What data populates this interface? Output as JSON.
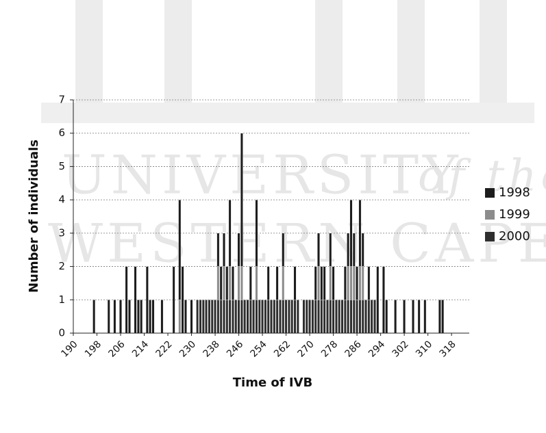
{
  "watermark": {
    "line1": "UNIVERSITY",
    "line1b": "of the",
    "line2": "WESTERN CAPE"
  },
  "chart_data": {
    "type": "bar",
    "stacked": true,
    "x_label": "Time of IVB",
    "y_label": "Number of individuals",
    "x": [
      197,
      202,
      204,
      206,
      208,
      209,
      211,
      212,
      213,
      215,
      216,
      217,
      220,
      224,
      226,
      227,
      228,
      230,
      232,
      233,
      234,
      235,
      236,
      237,
      238,
      239,
      240,
      241,
      242,
      243,
      244,
      245,
      246,
      247,
      248,
      249,
      250,
      251,
      252,
      253,
      254,
      255,
      256,
      257,
      258,
      259,
      260,
      261,
      262,
      263,
      264,
      265,
      266,
      268,
      269,
      270,
      271,
      272,
      273,
      274,
      275,
      276,
      277,
      278,
      279,
      280,
      281,
      282,
      283,
      284,
      285,
      286,
      287,
      288,
      289,
      290,
      291,
      292,
      293,
      295,
      296,
      299,
      302,
      305,
      307,
      309,
      314,
      315
    ],
    "series": [
      {
        "name": "1998",
        "color": "#1c1c1c",
        "values": [
          1,
          1,
          1,
          1,
          2,
          1,
          2,
          1,
          1,
          2,
          1,
          1,
          1,
          2,
          3,
          2,
          1,
          1,
          0,
          0,
          0,
          0,
          0,
          0,
          0,
          1,
          1,
          1,
          1,
          2,
          1,
          0,
          1,
          4,
          0,
          0,
          1,
          0,
          2,
          0,
          0,
          0,
          1,
          0,
          0,
          1,
          0,
          1,
          0,
          0,
          0,
          1,
          0,
          0,
          0,
          0,
          0,
          1,
          1,
          1,
          1,
          0,
          1,
          1,
          0,
          0,
          0,
          1,
          1,
          2,
          1,
          1,
          2,
          1,
          0,
          1,
          0,
          0,
          2,
          2,
          1,
          1,
          1,
          1,
          1,
          1,
          1,
          1
        ]
      },
      {
        "name": "1999",
        "color": "#8c8c8c",
        "values": [
          0,
          0,
          0,
          0,
          0,
          0,
          0,
          0,
          0,
          0,
          0,
          0,
          0,
          0,
          1,
          0,
          0,
          0,
          0,
          0,
          0,
          0,
          0,
          0,
          0,
          1,
          0,
          1,
          0,
          1,
          0,
          0,
          1,
          1,
          0,
          0,
          0,
          0,
          1,
          0,
          0,
          0,
          0,
          0,
          0,
          0,
          0,
          1,
          0,
          0,
          0,
          0,
          0,
          0,
          0,
          0,
          0,
          0,
          1,
          0,
          0,
          0,
          1,
          0,
          0,
          0,
          0,
          0,
          1,
          1,
          1,
          0,
          1,
          1,
          0,
          0,
          0,
          0,
          0,
          0,
          0,
          0,
          0,
          0,
          0,
          0,
          0,
          0
        ]
      },
      {
        "name": "2000",
        "color": "#2e2e2e",
        "values": [
          0,
          0,
          0,
          0,
          0,
          0,
          0,
          0,
          0,
          0,
          0,
          0,
          0,
          0,
          0,
          0,
          0,
          0,
          1,
          1,
          1,
          1,
          1,
          1,
          1,
          1,
          1,
          1,
          1,
          1,
          1,
          1,
          1,
          1,
          1,
          1,
          1,
          1,
          1,
          1,
          1,
          1,
          1,
          1,
          1,
          1,
          1,
          1,
          1,
          1,
          1,
          1,
          1,
          1,
          1,
          1,
          1,
          1,
          1,
          1,
          1,
          1,
          1,
          1,
          1,
          1,
          1,
          1,
          1,
          1,
          1,
          1,
          1,
          1,
          1,
          1,
          1,
          1,
          0,
          0,
          0,
          0,
          0,
          0,
          0,
          0,
          0,
          0
        ]
      }
    ],
    "xlim": [
      190,
      324
    ],
    "xticks": [
      190,
      198,
      206,
      214,
      222,
      230,
      238,
      246,
      254,
      262,
      270,
      278,
      286,
      294,
      302,
      310,
      318
    ],
    "ylim": [
      0,
      7
    ],
    "yticks": [
      0,
      1,
      2,
      3,
      4,
      5,
      6,
      7
    ],
    "grid": true,
    "legend_position": "right"
  }
}
